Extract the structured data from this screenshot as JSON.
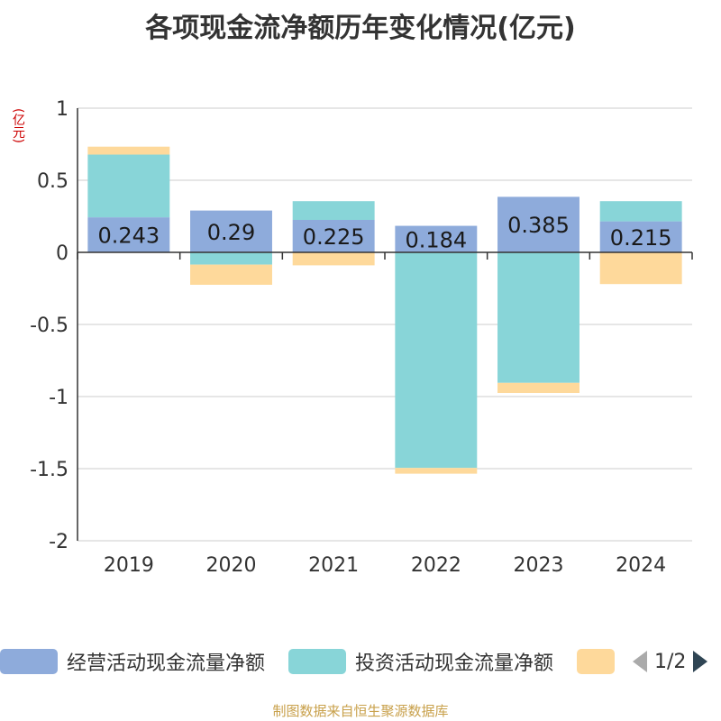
{
  "chart_data": {
    "type": "bar",
    "stacked": true,
    "title": "各项现金流净额历年变化情况(亿元)",
    "unit_label": "(亿元)",
    "categories": [
      "2019",
      "2020",
      "2021",
      "2022",
      "2023",
      "2024"
    ],
    "ylim": [
      -2,
      1
    ],
    "yticks": [
      1,
      0.5,
      0,
      -0.5,
      -1,
      -1.5,
      -2
    ],
    "ytick_labels": [
      "1",
      "0.5",
      "0",
      "-0.5",
      "-1",
      "-1.5",
      "-2"
    ],
    "grid": true,
    "series": [
      {
        "name": "经营活动现金流量净额",
        "color": "#8eabdb",
        "values": [
          0.243,
          0.29,
          0.225,
          0.184,
          0.385,
          0.215
        ],
        "labels": [
          "0.243",
          "0.29",
          "0.225",
          "0.184",
          "0.385",
          "0.215"
        ]
      },
      {
        "name": "投资活动现金流量净额",
        "color": "#88d5d8",
        "values": [
          0.435,
          -0.085,
          0.13,
          -1.495,
          -0.905,
          0.14
        ]
      },
      {
        "name": "",
        "color": "#fed99b",
        "values": [
          0.055,
          -0.14,
          -0.09,
          -0.04,
          -0.07,
          -0.22
        ]
      }
    ],
    "legend_position": "bottom",
    "legend_page": "1/2"
  },
  "source": "制图数据来自恒生聚源数据库"
}
